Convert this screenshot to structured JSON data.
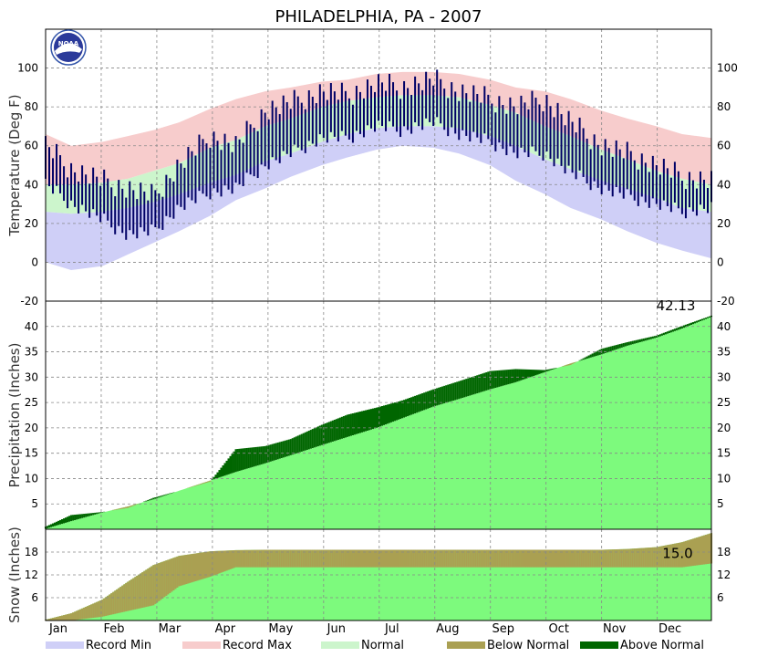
{
  "title": "PHILADELPHIA, PA - 2007",
  "logo_text": "NOAA",
  "colors": {
    "record_min": "#cfcff7",
    "record_max": "#f7cccc",
    "normal": "#ccf5cc",
    "observed": "#000066",
    "precip_normal": "#7dfa7d",
    "below_normal": "#aaa052",
    "above_normal": "#006600"
  },
  "legend": [
    {
      "label": "Record Min",
      "color": "#cfcff7"
    },
    {
      "label": "Record Max",
      "color": "#f7cccc"
    },
    {
      "label": "Normal",
      "color": "#ccf5cc"
    },
    {
      "label": "Below Normal",
      "color": "#aaa052"
    },
    {
      "label": "Above Normal",
      "color": "#006600"
    }
  ],
  "months": [
    "Jan",
    "Feb",
    "Mar",
    "Apr",
    "May",
    "Jun",
    "Jul",
    "Aug",
    "Sep",
    "Oct",
    "Nov",
    "Dec"
  ],
  "chart_data": [
    {
      "type": "area",
      "name": "temperature",
      "ylabel": "Temperature (Deg F)",
      "ylim": [
        -20,
        120
      ],
      "yticks": [
        -20,
        0,
        20,
        40,
        60,
        80,
        100
      ],
      "grid": true,
      "x_days": [
        1,
        15,
        32,
        46,
        60,
        74,
        91,
        105,
        121,
        135,
        152,
        166,
        182,
        196,
        213,
        227,
        244,
        258,
        274,
        288,
        305,
        319,
        335,
        349,
        365
      ],
      "record_max": [
        66,
        60,
        62,
        65,
        68,
        72,
        79,
        84,
        88,
        90,
        93,
        94,
        97,
        98,
        98,
        97,
        94,
        90,
        88,
        84,
        78,
        74,
        70,
        66,
        64
      ],
      "normal_high": [
        40,
        40,
        41,
        43,
        47,
        51,
        59,
        63,
        70,
        74,
        80,
        83,
        85,
        86,
        86,
        85,
        81,
        77,
        70,
        65,
        58,
        53,
        47,
        43,
        40
      ],
      "normal_low": [
        26,
        25,
        26,
        28,
        31,
        35,
        41,
        45,
        52,
        56,
        62,
        66,
        69,
        70,
        70,
        69,
        65,
        60,
        53,
        48,
        42,
        38,
        33,
        28,
        26
      ],
      "record_min": [
        0,
        -4,
        -2,
        4,
        10,
        16,
        24,
        32,
        38,
        44,
        50,
        54,
        58,
        60,
        59,
        56,
        50,
        42,
        35,
        28,
        22,
        16,
        10,
        6,
        2
      ],
      "observed_high": [
        60,
        48,
        42,
        38,
        34,
        50,
        65,
        60,
        78,
        82,
        88,
        86,
        92,
        90,
        94,
        88,
        84,
        80,
        84,
        72,
        60,
        56,
        50,
        44,
        42
      ],
      "observed_low": [
        40,
        30,
        22,
        14,
        16,
        28,
        36,
        38,
        50,
        56,
        64,
        64,
        70,
        68,
        72,
        66,
        62,
        56,
        56,
        46,
        38,
        34,
        30,
        26,
        28
      ]
    },
    {
      "type": "area",
      "name": "precipitation",
      "ylabel": "Precipitation (Inches)",
      "ylim": [
        0,
        45
      ],
      "yticks": [
        5,
        10,
        15,
        20,
        25,
        30,
        35,
        40
      ],
      "grid": true,
      "annotation": "42.13",
      "x_days": [
        1,
        15,
        32,
        46,
        60,
        74,
        91,
        105,
        121,
        135,
        152,
        166,
        182,
        196,
        213,
        227,
        244,
        258,
        274,
        288,
        305,
        319,
        335,
        349,
        365
      ],
      "normal_cumulative": [
        0.1,
        1.6,
        3.3,
        4.5,
        5.9,
        7.6,
        9.6,
        11.3,
        13.0,
        14.6,
        16.6,
        18.2,
        20.0,
        21.9,
        24.2,
        25.7,
        27.6,
        29.0,
        31.0,
        32.7,
        34.5,
        36.2,
        37.8,
        39.6,
        41.9
      ],
      "observed_cumulative": [
        0.5,
        2.8,
        3.4,
        4.2,
        6.2,
        7.6,
        9.4,
        15.8,
        16.4,
        17.8,
        20.6,
        22.6,
        24.0,
        25.4,
        27.6,
        29.2,
        31.2,
        31.6,
        31.4,
        32.4,
        35.6,
        36.9,
        38.2,
        40.1,
        42.13
      ]
    },
    {
      "type": "area",
      "name": "snow",
      "ylabel": "Snow (Inches)",
      "ylim": [
        0,
        24
      ],
      "yticks": [
        6,
        12,
        18
      ],
      "grid": true,
      "annotation": "15.0",
      "x_days": [
        1,
        15,
        32,
        46,
        60,
        74,
        91,
        105,
        121,
        135,
        152,
        166,
        182,
        196,
        213,
        227,
        244,
        258,
        274,
        288,
        305,
        319,
        335,
        349,
        365
      ],
      "normal_cumulative": [
        0.2,
        1.9,
        5.5,
        10.2,
        14.6,
        17.0,
        18.2,
        18.5,
        18.6,
        18.6,
        18.6,
        18.6,
        18.6,
        18.6,
        18.6,
        18.6,
        18.6,
        18.6,
        18.6,
        18.6,
        18.6,
        18.8,
        19.3,
        20.6,
        23.0
      ],
      "observed_cumulative": [
        0,
        0,
        1.0,
        2.5,
        4.0,
        9.0,
        11.5,
        14.0,
        14.0,
        14.0,
        14.0,
        14.0,
        14.0,
        14.0,
        14.0,
        14.0,
        14.0,
        14.0,
        14.0,
        14.0,
        14.0,
        14.0,
        14.0,
        14.0,
        15.0
      ]
    }
  ]
}
